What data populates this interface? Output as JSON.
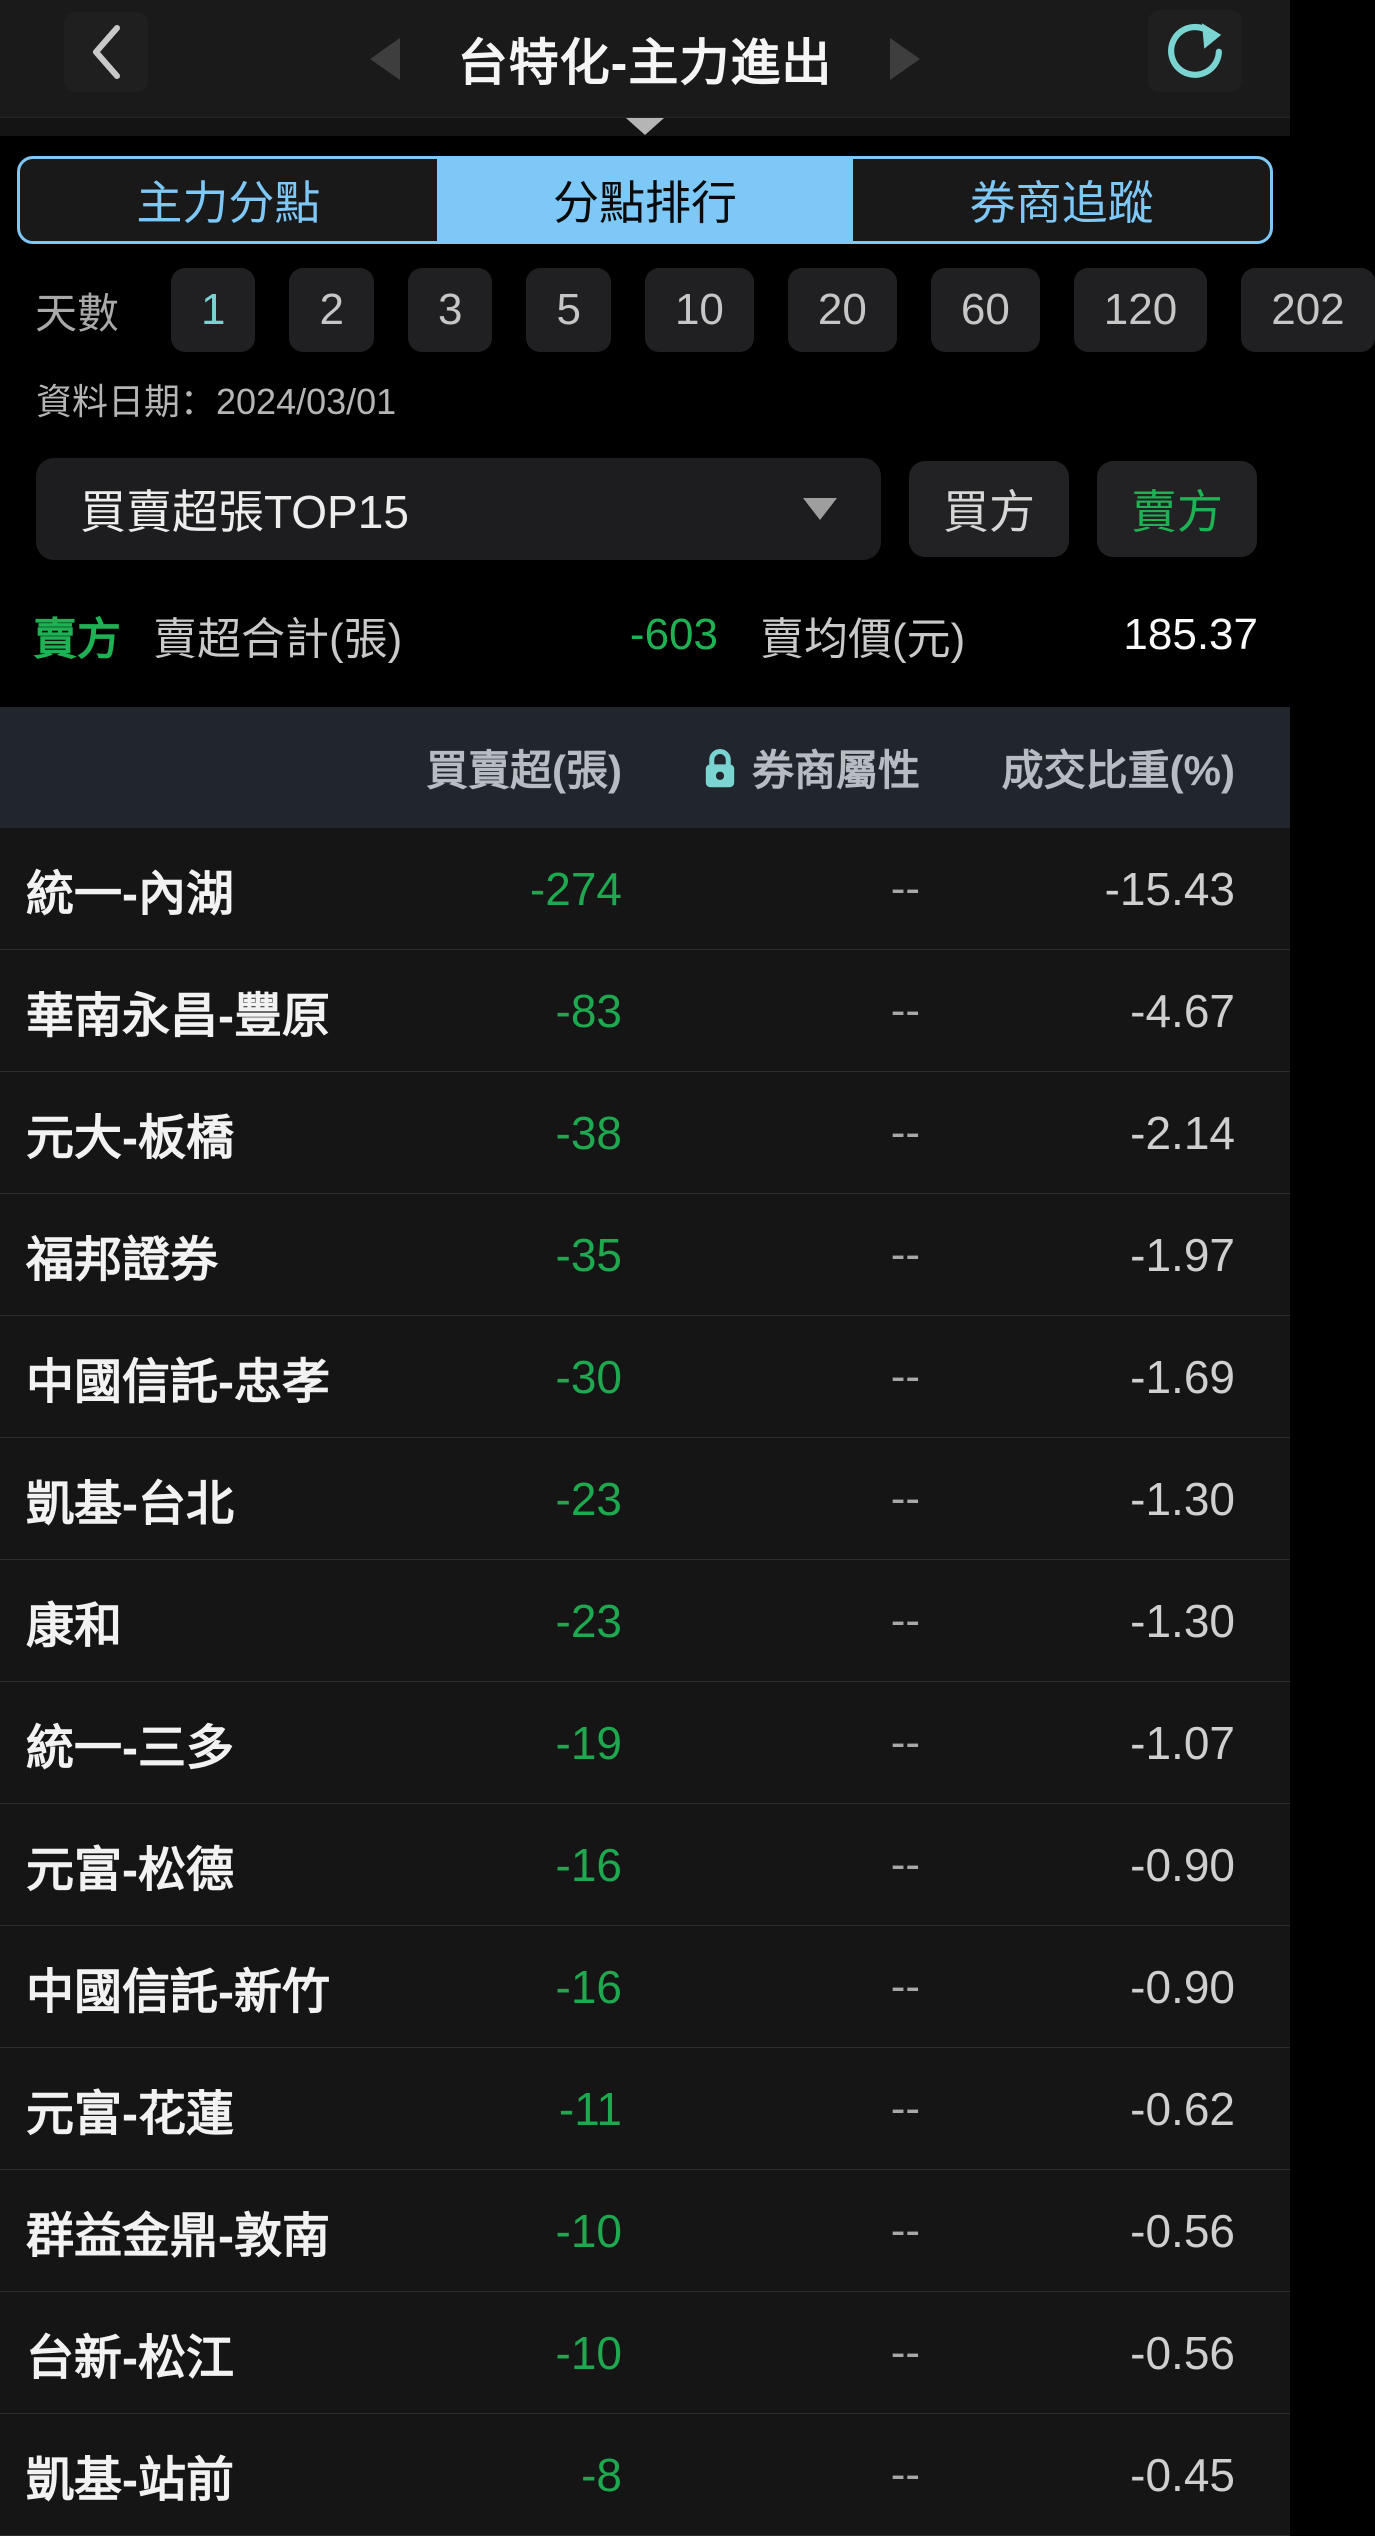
{
  "appbar": {
    "title": "台特化-主力進出",
    "back_icon": "chevron-left-icon",
    "prev_icon": "triangle-left-icon",
    "next_icon": "triangle-right-icon",
    "refresh_icon": "refresh-icon"
  },
  "tabs": [
    {
      "label": "主力分點",
      "selected": false
    },
    {
      "label": "分點排行",
      "selected": true
    },
    {
      "label": "券商追蹤",
      "selected": false
    }
  ],
  "days": {
    "label": "天數",
    "options": [
      "1",
      "2",
      "3",
      "5",
      "10",
      "20",
      "60",
      "120",
      "202"
    ],
    "selected": "1"
  },
  "data_date": "資料日期：2024/03/01",
  "filter": {
    "dropdown_value": "買賣超張TOP15",
    "buy_label": "買方",
    "sell_label": "賣方",
    "selected_side": "sell"
  },
  "summary": {
    "side_label": "賣方",
    "total_label": "賣超合計(張)",
    "total_value": "-603",
    "avg_label": "賣均價(元)",
    "avg_value": "185.37"
  },
  "table": {
    "columns": {
      "value": "買賣超(張)",
      "attr": "券商屬性",
      "weight": "成交比重(%)"
    },
    "attr_lock_icon": "lock-icon",
    "rows": [
      {
        "name": "統一-內湖",
        "value": "-274",
        "attr": "--",
        "weight": "-15.43"
      },
      {
        "name": "華南永昌-豐原",
        "value": "-83",
        "attr": "--",
        "weight": "-4.67"
      },
      {
        "name": "元大-板橋",
        "value": "-38",
        "attr": "--",
        "weight": "-2.14"
      },
      {
        "name": "福邦證券",
        "value": "-35",
        "attr": "--",
        "weight": "-1.97"
      },
      {
        "name": "中國信託-忠孝",
        "value": "-30",
        "attr": "--",
        "weight": "-1.69"
      },
      {
        "name": "凱基-台北",
        "value": "-23",
        "attr": "--",
        "weight": "-1.30"
      },
      {
        "name": "康和",
        "value": "-23",
        "attr": "--",
        "weight": "-1.30"
      },
      {
        "name": "統一-三多",
        "value": "-19",
        "attr": "--",
        "weight": "-1.07"
      },
      {
        "name": "元富-松德",
        "value": "-16",
        "attr": "--",
        "weight": "-0.90"
      },
      {
        "name": "中國信託-新竹",
        "value": "-16",
        "attr": "--",
        "weight": "-0.90"
      },
      {
        "name": "元富-花蓮",
        "value": "-11",
        "attr": "--",
        "weight": "-0.62"
      },
      {
        "name": "群益金鼎-敦南",
        "value": "-10",
        "attr": "--",
        "weight": "-0.56"
      },
      {
        "name": "台新-松江",
        "value": "-10",
        "attr": "--",
        "weight": "-0.56"
      },
      {
        "name": "凱基-站前",
        "value": "-8",
        "attr": "--",
        "weight": "-0.45"
      }
    ]
  },
  "colors": {
    "accent_teal": "#7ad5d2",
    "accent_blue": "#7ec8f8",
    "negative_green": "#1ea84f",
    "sell_green": "#1fb254",
    "table_header_bg": "#20262b",
    "row_bg": "#151515",
    "page_bg": "#000000"
  }
}
